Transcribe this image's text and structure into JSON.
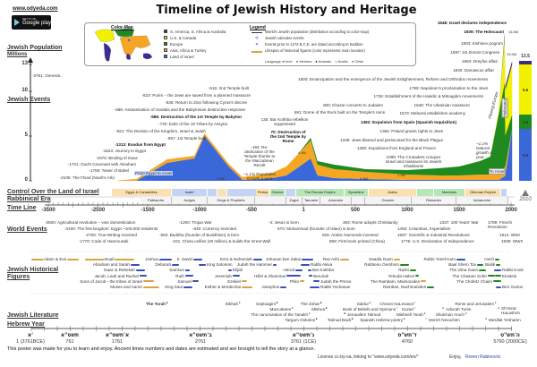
{
  "header": {
    "site": "www.odyeda.com",
    "store_small": "GET IT ON",
    "store": "Google play",
    "title": "Timeline of Jewish History and Heritage"
  },
  "legend": {
    "colormap_title": "Color-Map",
    "regions": [
      {
        "label": "S. America, S. Africa & Australia",
        "color": "#3a2d8f"
      },
      {
        "label": "U.S. & Canada",
        "color": "#f2f200"
      },
      {
        "label": "Europe",
        "color": "#1f8a1f"
      },
      {
        "label": "Asia, Africa & Turkey",
        "color": "#f5a623"
      },
      {
        "label": "Land of Israel",
        "color": "#3b68d8"
      }
    ],
    "title": "Legend",
    "items": [
      "World's Jewish population (distribution according to color-map)",
      "Jewish calendar events",
      "Events prior to 1273 B.C.E. are dated according to tradition",
      "Lifespan of historical figures (color represents main location)"
    ],
    "language_label": "Language of text:",
    "languages": [
      {
        "label": "Hebrew",
        "color": "#3b4fa8"
      },
      {
        "label": "Aramaic",
        "color": "#111"
      },
      {
        "label": "Arabic",
        "color": "#d9a441"
      },
      {
        "label": "Other",
        "color": "#1f8a1f"
      }
    ]
  },
  "side_labels": {
    "population": "Jewish Population",
    "millions": "Millions",
    "events": "Jewish Events",
    "control": "Control Over the Land of Israel",
    "rabbinical": "Rabbinical Era",
    "timeline": "Time Line",
    "world": "World Events",
    "figures": "Jewish Historical Figures",
    "literature": "Jewish Literature",
    "hebrew_year": "Hebrew Year"
  },
  "population": {
    "y_ticks": [
      "13",
      "10",
      "5",
      "0"
    ],
    "years": [
      -2100,
      -1731,
      -1313,
      -1050,
      -953,
      -720,
      -586,
      -538,
      -300,
      -164,
      -50,
      70,
      135,
      300,
      600,
      1000,
      1300,
      1500,
      1700,
      1800,
      1880,
      1939,
      1945,
      2010
    ],
    "series": [
      {
        "name": "Land of Israel",
        "color": "#3b68d8",
        "values": [
          0,
          0,
          2.0,
          2.5,
          5.0,
          1.6,
          0.1,
          0.1,
          0.3,
          0.6,
          1.5,
          2.5,
          0.6,
          0.3,
          0.2,
          0.1,
          0.1,
          0.1,
          0.1,
          0.1,
          0.1,
          0.5,
          0.6,
          5.8
        ]
      },
      {
        "name": "Asia, Africa & Turkey",
        "color": "#f5a623",
        "values": [
          0.05,
          0.2,
          0.4,
          0.3,
          0.3,
          0.3,
          0.3,
          0.4,
          0.6,
          1.0,
          1.5,
          2.0,
          1.2,
          1.0,
          0.8,
          0.6,
          0.5,
          0.5,
          0.6,
          0.6,
          0.8,
          1.0,
          1.0,
          0
        ]
      },
      {
        "name": "Europe",
        "color": "#1f8a1f",
        "values": [
          0,
          0,
          0,
          0,
          0,
          0,
          0,
          0,
          0,
          0,
          0,
          0.3,
          0.4,
          0.5,
          0.3,
          0.5,
          0.8,
          1.0,
          1.5,
          2.0,
          6.5,
          9.5,
          3.5,
          1.6
        ]
      },
      {
        "name": "U.S. & Canada",
        "color": "#f2f200",
        "values": [
          0,
          0,
          0,
          0,
          0,
          0,
          0,
          0,
          0,
          0,
          0,
          0,
          0,
          0,
          0,
          0,
          0,
          0,
          0,
          0,
          0.3,
          5.0,
          5.0,
          5.6
        ]
      },
      {
        "name": "S. America",
        "color": "#3a2d8f",
        "values": [
          0,
          0,
          0,
          0,
          0,
          0,
          0,
          0,
          0,
          0,
          0,
          0,
          0,
          0,
          0,
          0,
          0,
          0,
          0,
          0,
          0,
          0.5,
          0.5,
          0.4
        ]
      }
    ],
    "value_labels": [
      "16.6M",
      "13.5M",
      "0.3M",
      "4.4M",
      "0.9M",
      "1.3M"
    ],
    "annotations": [
      "From Egypt to Israel",
      "~1.1% Population Growth a year",
      "Fleeing Europe",
      "Holocaust",
      "~1.1% Natural growth a year",
      "To Israel"
    ],
    "current": {
      "total": "13.5",
      "year": "2010",
      "parts": [
        {
          "value": "5.8",
          "color": "#3b68d8"
        },
        {
          "value": "1.6",
          "color": "#1f8a1f"
        },
        {
          "value": "5.6",
          "color": "#f2f200"
        },
        {
          "value": "0.4",
          "color": "#3a2d8f"
        }
      ]
    }
  },
  "jewish_events": [
    "-3761: Genesis.",
    "-515: 2nd Temple built",
    "-523: Purim – the Jews are saved from a planned massacre",
    "-538: Return to Zion following Cyrus's decree",
    "-586: Assassination of Gedalia and the Babylonian destructive response",
    "-586: Destruction of the 1st Temple by Babylon",
    "-720: Exile of the 10 Tribes by Assyria",
    "-924: The Division of the Kingdom, Israel & Judah",
    "-957: 1st Temple built",
    "-1313: Exodus from Egypt",
    "-1523: Journey to Egypt",
    "-1676: Binding of Isaac",
    "-1731: God's Covenant with Abraham",
    "-1765: Tower of Babel",
    "-2105: The Flood (Noah's Ark)",
    "-164: Re-dedication of the Temple thanks to the Maccabean Revolt",
    "70: Destruction of the 2nd Temple by Rome",
    "135: Bar Kokhba rebellion suppressed",
    "691: Dome of the Rock built on the Temple's ruins",
    "800: Khazar converts to Judaism",
    "1800: Emancipation and the emergence of the Jewish Enlightenment, Reform and Orthodox movements",
    "1799: Napoleon's proclamation to the Jews",
    "1736: Establishment of the Hasidic & Mitnagdim movements",
    "1648: The Ukrainian massacre",
    "1573: Maharal establishes academy",
    "1492: Expulsion from Spain (Spanish Inquisition)",
    "1364: Poland grants rights to Jews",
    "1348: Jews blamed and persecuted for the Black Plague",
    "1290: Expulsions from England and France",
    "1099: The Crusaders conquer Israel and massacre its Jewish inhabitants",
    "1948: Israel declares independence",
    "1939: The Holocaust",
    "1903: Kishinev pogrom",
    "1897: 1st Zionist Congress",
    "1894: Dreyfus affair",
    "1840: Damascus affair"
  ],
  "control": [
    "Egypt & Canaanites",
    "Israel",
    "",
    "",
    "Persia",
    "Greece",
    "",
    "The Roman Empire",
    "Byzantine",
    "Arabs",
    "",
    "Mamluks",
    "Ottoman Empire",
    ""
  ],
  "rabbinical": [
    "Patriarchs",
    "Judges",
    "Kings & Prophets",
    "",
    "Zugot",
    "Tannaim",
    "Amoraim",
    "",
    "Geonim",
    "Rishonim",
    "Acharonim"
  ],
  "timeline": [
    "-3500",
    "-2500",
    "-1500",
    "-1000",
    "-500",
    "1",
    "500",
    "1000",
    "1500",
    "2000"
  ],
  "world_events": [
    "-3500: Agricultural revolution – vine domestication",
    "-1200: Trojan War",
    "-4: Jesus is born",
    "383: Rome adopts Christianity",
    "1337: 100 Years' War",
    "1789: French Revolution",
    "-3100: The first kingdom: Egypt ~100,000 residents",
    "-640: Currency invented",
    "570: Muhammad (founder of Islam) is born",
    "1492: Columbus, Imperialism",
    "-2700: True-Writing invented",
    "-563: Buddha (founder of Buddhism) is born",
    "825: Arabic Numerals invented",
    "1687: Scientific & Industrial Revolutions",
    "1914: WWI",
    "-1770: Code of Hammurabi",
    "-221: China unifies (40 million) & builds the Great Wall",
    "868: First book printed (China)",
    "1776: U.S. Declaration of Independence",
    "1939: WWII"
  ],
  "figures": [
    "Adam & Eve",
    "Noah",
    "Joshua",
    "K. David",
    "Ezra & Nehemiah",
    "Johanan ben Zakai",
    "Rav Ashi",
    "Saadia Gaon",
    "Rabbi Yosef Karo",
    "Herzl",
    "Abraham and Sarah",
    "Deborah",
    "King Solomon",
    "Judah the Hammer",
    "Rabbi Akiva",
    "Rabbenu Gershom",
    "Baal Shem Tov",
    "Bialik",
    "Isaac & Rebekah",
    "Samson",
    "Elijah",
    "Herod",
    "Bar Kokhba",
    "Rashi",
    "The Vilna Gaon",
    "Rabbi Kook",
    "Jacob, Leah and Rachel",
    "Ruth",
    "Jeremiah",
    "Hillel & Shammai",
    "Beruriah",
    "Yehuda Halevi",
    "The Chasam Sofer",
    "Einstein",
    "Sons of Jacob - the tribes of Israel",
    "Samuel",
    "Ezekiel",
    "Philo",
    "Judah the Prince",
    "The Rambam, Maimonides",
    "The Chofetz Chaim",
    "Moses and Aaron",
    "King Saul",
    "Esther & Mordechai",
    "Josephus",
    "Rabbi Yochanan",
    "Ramban, Nachmanides",
    "Ben Gurion"
  ],
  "literature": [
    "The Torah",
    "Eikhah",
    "Septuagint",
    "The Zohar",
    "Siddur",
    "Chovot HaLevavot",
    "Rome and Jerusalem",
    "Maccabees",
    "Mishna",
    "Book of Beliefs and Opinions",
    "Kuzari",
    "Arba'ah Turim",
    "Sh'mirat HaLashon",
    "The canonization of the Tanakh",
    "Jerusalem Talmud",
    "Mishneh Torah",
    "Shulchan Aruch",
    "Targum Onkelos",
    "Talmud Bavli",
    "Spanish Hebrew poetry",
    "Moreh Nevuchim",
    "Mesillat Yesharim"
  ],
  "hebrew_years": [
    {
      "heb": "א'",
      "num": "1 (3761BCE)"
    },
    {
      "heb": "תשס\"א",
      "num": "761"
    },
    {
      "heb": "א'תשס\"א",
      "num": "1761"
    },
    {
      "heb": "ב'תשס\"א",
      "num": "2761"
    },
    {
      "heb": "ג'תשס\"א",
      "num": "3761 (1CE)"
    },
    {
      "heb": "ד'תש\"ס",
      "num": "4760"
    },
    {
      "heb": "ה'תש\"ס",
      "num": "5760 (2000CE)"
    }
  ],
  "footer": {
    "note": "This poster was made for you to learn and enjoy. Ancient times numbers and dates are estimated and are brought to tell the story at a glance.",
    "license": "License cc-by-sa, linking to \"www.odyeda.com/en/\"",
    "enjoy": "Enjoy,",
    "author": "Ronen Rabinovici"
  }
}
